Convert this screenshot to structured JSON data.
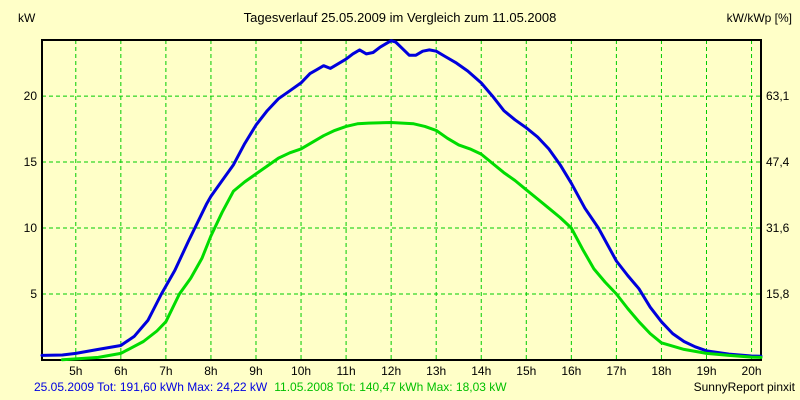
{
  "title": "Tagesverlauf 25.05.2009 im Vergleich zum 11.05.2008",
  "y_left_unit": "kW",
  "y_right_unit": "kW/kWp [%]",
  "footer": {
    "series1_summary": "25.05.2009 Tot: 191,60 kWh Max: 24,22 kW",
    "series2_summary": "11.05.2008 Tot: 140,47 kWh Max: 18,03 kW",
    "brand": "SunnyReport pinxit"
  },
  "colors": {
    "background": "#FFFFC8",
    "grid": "#00CC00",
    "series1": "#0000DC",
    "series2": "#00DC00",
    "footer_series1_text": "#0000E0",
    "footer_series2_text": "#00C000",
    "text": "#000000",
    "plot_border": "#000000"
  },
  "chart_data": {
    "type": "line",
    "title": "Tagesverlauf 25.05.2009 im Vergleich zum 11.05.2008",
    "xlabel": "",
    "ylabel_left": "kW",
    "ylabel_right": "kW/kWp [%]",
    "grid": true,
    "x_range": [
      4.25,
      20.21
    ],
    "y_range": [
      0,
      24.25
    ],
    "x_tick_hours": [
      5,
      6,
      7,
      8,
      9,
      10,
      11,
      12,
      13,
      14,
      15,
      16,
      17,
      18,
      19,
      20
    ],
    "x_tick_labels": [
      "5h",
      "6h",
      "7h",
      "8h",
      "9h",
      "10h",
      "11h",
      "12h",
      "13h",
      "14h",
      "15h",
      "16h",
      "17h",
      "18h",
      "19h",
      "20h"
    ],
    "y_left_tick_values": [
      5,
      10,
      15,
      20
    ],
    "y_left_tick_labels": [
      "5",
      "10",
      "15",
      "20"
    ],
    "y_right_tick_labels": [
      "15,8",
      "31,6",
      "47,4",
      "63,1"
    ],
    "series": [
      {
        "name": "25.05.2009",
        "total": "191,60 kWh",
        "max": "24,22 kW",
        "color": "#0000DC",
        "points": [
          [
            4.25,
            0.35
          ],
          [
            4.7,
            0.38
          ],
          [
            5,
            0.5
          ],
          [
            5.5,
            0.8
          ],
          [
            6,
            1.1
          ],
          [
            6.3,
            1.8
          ],
          [
            6.6,
            3.0
          ],
          [
            6.9,
            5.0
          ],
          [
            7.2,
            6.8
          ],
          [
            7.5,
            9.0
          ],
          [
            7.9,
            11.8
          ],
          [
            8,
            12.4
          ],
          [
            8.25,
            13.6
          ],
          [
            8.5,
            14.8
          ],
          [
            8.75,
            16.4
          ],
          [
            9,
            17.8
          ],
          [
            9.25,
            18.9
          ],
          [
            9.5,
            19.8
          ],
          [
            9.75,
            20.4
          ],
          [
            10,
            21.0
          ],
          [
            10.2,
            21.7
          ],
          [
            10.35,
            22.0
          ],
          [
            10.5,
            22.3
          ],
          [
            10.65,
            22.1
          ],
          [
            11,
            22.8
          ],
          [
            11.15,
            23.2
          ],
          [
            11.3,
            23.5
          ],
          [
            11.45,
            23.2
          ],
          [
            11.6,
            23.3
          ],
          [
            11.75,
            23.7
          ],
          [
            11.9,
            24.0
          ],
          [
            12,
            24.2
          ],
          [
            12.1,
            24.1
          ],
          [
            12.25,
            23.6
          ],
          [
            12.4,
            23.1
          ],
          [
            12.55,
            23.1
          ],
          [
            12.7,
            23.4
          ],
          [
            12.85,
            23.5
          ],
          [
            13,
            23.4
          ],
          [
            13.2,
            23.0
          ],
          [
            13.45,
            22.5
          ],
          [
            13.7,
            21.9
          ],
          [
            14,
            21.0
          ],
          [
            14.25,
            20.0
          ],
          [
            14.5,
            18.9
          ],
          [
            14.75,
            18.2
          ],
          [
            15,
            17.6
          ],
          [
            15.25,
            16.9
          ],
          [
            15.5,
            16.0
          ],
          [
            15.75,
            14.8
          ],
          [
            16,
            13.4
          ],
          [
            16.3,
            11.5
          ],
          [
            16.6,
            10.0
          ],
          [
            17,
            7.5
          ],
          [
            17.25,
            6.4
          ],
          [
            17.5,
            5.4
          ],
          [
            17.75,
            4.0
          ],
          [
            18,
            2.9
          ],
          [
            18.25,
            2.0
          ],
          [
            18.5,
            1.4
          ],
          [
            18.75,
            1.0
          ],
          [
            19,
            0.7
          ],
          [
            19.5,
            0.45
          ],
          [
            20,
            0.3
          ],
          [
            20.21,
            0.28
          ]
        ]
      },
      {
        "name": "11.05.2008",
        "total": "140,47 kWh",
        "max": "18,03 kW",
        "color": "#00DC00",
        "points": [
          [
            4.7,
            0.02
          ],
          [
            5,
            0.08
          ],
          [
            5.5,
            0.2
          ],
          [
            6,
            0.5
          ],
          [
            6.5,
            1.4
          ],
          [
            6.8,
            2.2
          ],
          [
            7,
            2.9
          ],
          [
            7.3,
            5.0
          ],
          [
            7.55,
            6.2
          ],
          [
            7.8,
            7.7
          ],
          [
            8,
            9.4
          ],
          [
            8.25,
            11.2
          ],
          [
            8.5,
            12.8
          ],
          [
            8.75,
            13.5
          ],
          [
            9,
            14.1
          ],
          [
            9.25,
            14.7
          ],
          [
            9.5,
            15.3
          ],
          [
            9.75,
            15.7
          ],
          [
            10,
            16.0
          ],
          [
            10.25,
            16.5
          ],
          [
            10.5,
            17.0
          ],
          [
            10.75,
            17.4
          ],
          [
            11,
            17.7
          ],
          [
            11.25,
            17.9
          ],
          [
            11.5,
            17.95
          ],
          [
            12,
            18.0
          ],
          [
            12.5,
            17.9
          ],
          [
            12.75,
            17.7
          ],
          [
            13,
            17.4
          ],
          [
            13.25,
            16.8
          ],
          [
            13.5,
            16.3
          ],
          [
            13.75,
            16.0
          ],
          [
            14,
            15.6
          ],
          [
            14.25,
            14.9
          ],
          [
            14.5,
            14.2
          ],
          [
            14.75,
            13.6
          ],
          [
            15,
            12.9
          ],
          [
            15.25,
            12.2
          ],
          [
            15.5,
            11.5
          ],
          [
            15.75,
            10.8
          ],
          [
            16,
            10.0
          ],
          [
            16.25,
            8.4
          ],
          [
            16.5,
            6.9
          ],
          [
            16.75,
            5.9
          ],
          [
            17,
            5.0
          ],
          [
            17.25,
            3.9
          ],
          [
            17.5,
            2.9
          ],
          [
            17.75,
            2.0
          ],
          [
            18,
            1.3
          ],
          [
            18.5,
            0.8
          ],
          [
            19,
            0.5
          ],
          [
            19.5,
            0.35
          ],
          [
            20,
            0.22
          ],
          [
            20.21,
            0.2
          ]
        ]
      }
    ]
  }
}
